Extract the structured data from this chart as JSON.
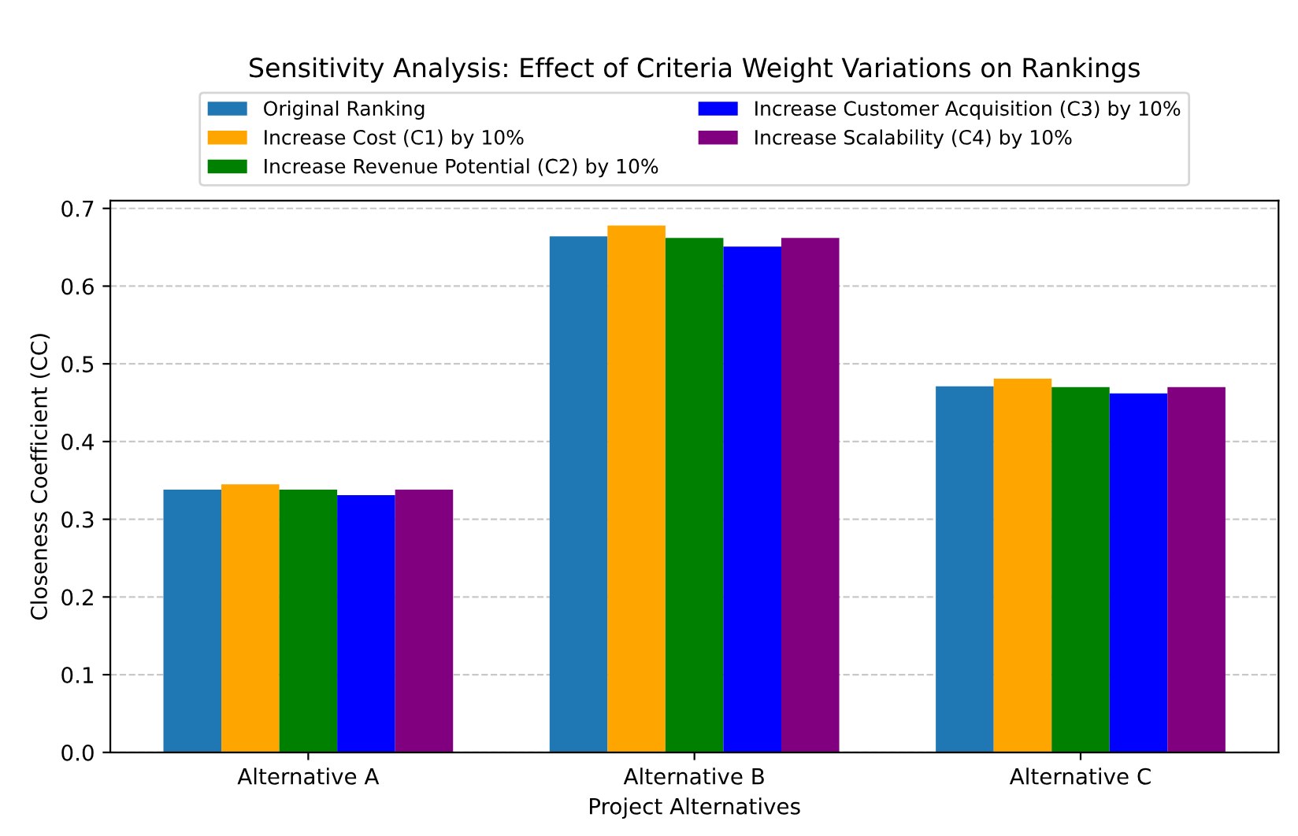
{
  "chart_data": {
    "type": "bar",
    "title": "Sensitivity Analysis: Effect of Criteria Weight Variations on Rankings",
    "xlabel": "Project Alternatives",
    "ylabel": "Closeness Coefficient (CC)",
    "categories": [
      "Alternative A",
      "Alternative B",
      "Alternative C"
    ],
    "series": [
      {
        "name": "Original Ranking",
        "color": "#1f77b4",
        "values": [
          0.338,
          0.664,
          0.471
        ]
      },
      {
        "name": "Increase Cost (C1) by 10%",
        "color": "#ffa500",
        "values": [
          0.345,
          0.678,
          0.481
        ]
      },
      {
        "name": "Increase Revenue Potential (C2) by 10%",
        "color": "#008000",
        "values": [
          0.338,
          0.662,
          0.47
        ]
      },
      {
        "name": "Increase Customer Acquisition (C3) by 10%",
        "color": "#0000ff",
        "values": [
          0.331,
          0.651,
          0.462
        ]
      },
      {
        "name": "Increase Scalability (C4) by 10%",
        "color": "#800080",
        "values": [
          0.338,
          0.662,
          0.47
        ]
      }
    ],
    "ylim": [
      0,
      0.71
    ],
    "yticks": [
      {
        "value": 0,
        "label": "0.0"
      },
      0.1,
      0.2,
      0.3,
      0.4,
      0.5,
      0.6,
      0.7
    ],
    "grid": "y",
    "legend": "top"
  }
}
